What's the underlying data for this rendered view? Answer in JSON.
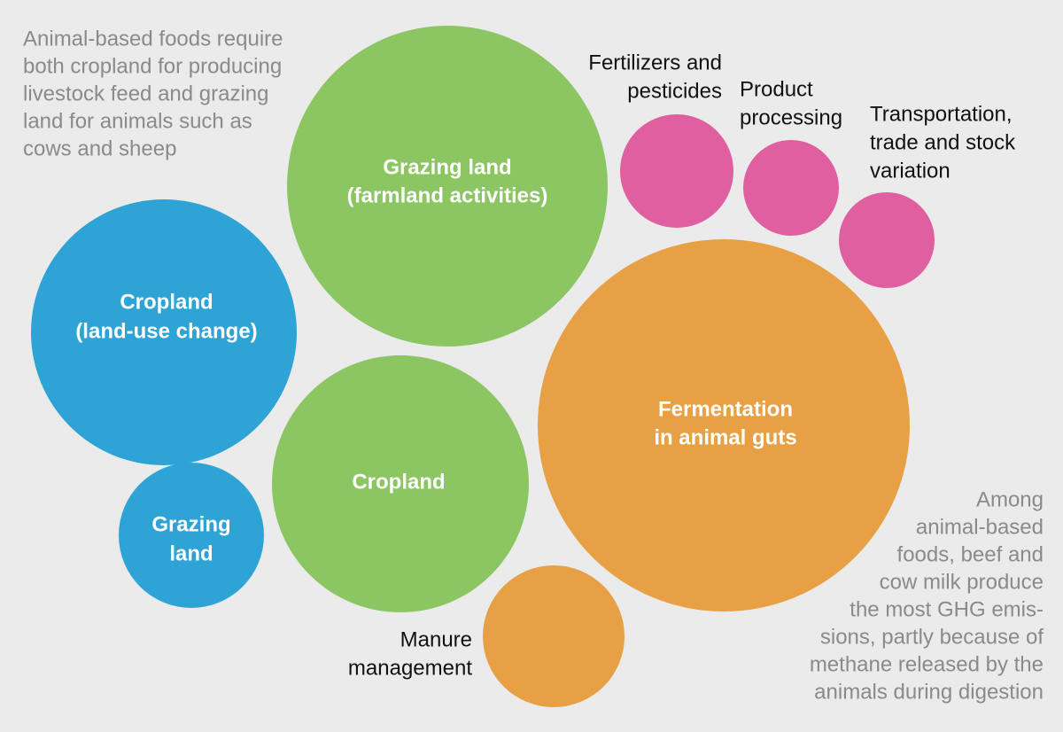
{
  "nodes": [
    {
      "label": [
        "Grazing land",
        "(farmland activities)"
      ]
    },
    {
      "label": [
        "Cropland",
        "(land-use change)"
      ]
    },
    {
      "label": [
        "Grazing",
        "land"
      ]
    },
    {
      "label": [
        "Cropland"
      ]
    },
    {
      "label": [
        "Fermentation",
        "in animal guts"
      ]
    },
    {
      "label": [
        "Manure",
        "management"
      ]
    },
    {
      "label": [
        "Fertilizers and",
        "pesticides"
      ]
    },
    {
      "label": [
        "Product",
        "processing"
      ]
    },
    {
      "label": [
        "Transportation,",
        "trade and stock",
        "variation"
      ]
    }
  ],
  "notes": [
    [
      "Animal-based foods require",
      "both cropland for producing",
      "livestock feed and grazing",
      "land for animals such as",
      "cows and sheep"
    ],
    [
      "Among",
      "animal-based",
      "foods, beef and",
      "cow milk produce",
      "the most GHG emis-",
      "sions, partly because of",
      "methane released by the",
      "animals during digestion"
    ]
  ]
}
